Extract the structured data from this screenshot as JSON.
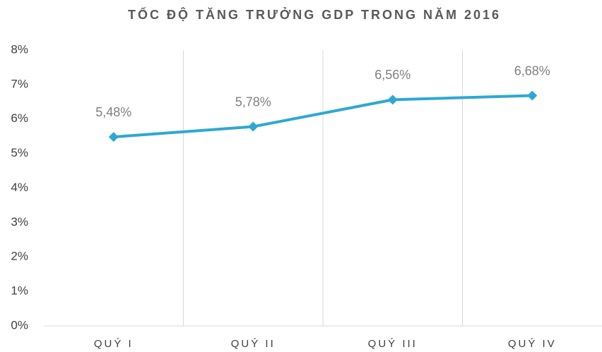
{
  "chart_data": {
    "type": "line",
    "title": "TỐC ĐỘ TĂNG TRƯỞNG GDP TRONG NĂM 2016",
    "categories": [
      "QUÝ I",
      "QUÝ II",
      "QUÝ III",
      "QUÝ IV"
    ],
    "series": [
      {
        "color": "#2ea8d2",
        "values": [
          5.48,
          5.78,
          6.56,
          6.68
        ],
        "value_labels": [
          "5,48%",
          "5,78%",
          "6,56%",
          "6,68%"
        ]
      }
    ],
    "ylim": [
      0,
      8
    ],
    "yticks": [
      {
        "value": 0,
        "label": "0%"
      },
      {
        "value": 1,
        "label": "1%"
      },
      {
        "value": 2,
        "label": "2%"
      },
      {
        "value": 3,
        "label": "3%"
      },
      {
        "value": 4,
        "label": "4%"
      },
      {
        "value": 5,
        "label": "5%"
      },
      {
        "value": 6,
        "label": "6%"
      },
      {
        "value": 7,
        "label": "7%"
      },
      {
        "value": 8,
        "label": "8%"
      }
    ]
  }
}
